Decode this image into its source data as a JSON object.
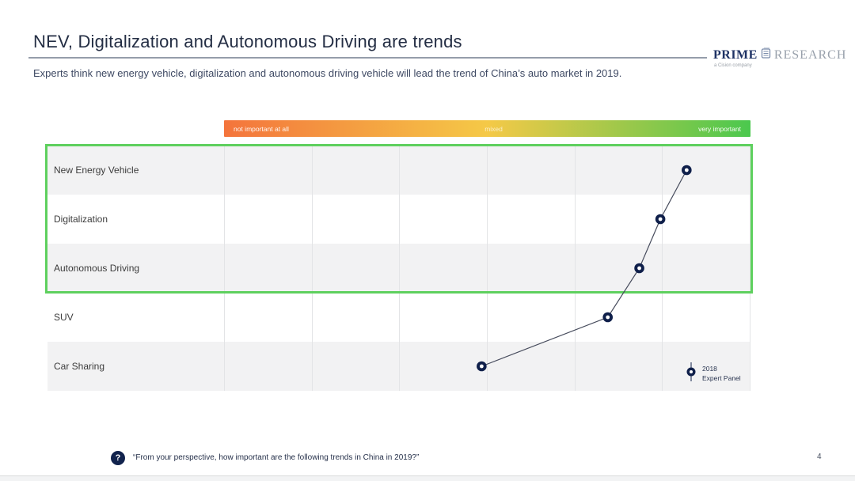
{
  "header": {
    "title": "NEV, Digitalization and Autonomous Driving are trends",
    "subtitle": "Experts think new energy vehicle, digitalization and autonomous driving vehicle will lead the trend of China’s auto market in 2019.",
    "logo": {
      "prime": "PRIME",
      "research": "RESEARCH",
      "tagline": "a Cision company"
    }
  },
  "scale_bar": {
    "left_label": "not important at all",
    "center_label": "mixed",
    "right_label": "very important",
    "gradient": [
      "#f4743c",
      "#f5c947",
      "#4bc84e"
    ]
  },
  "chart_data": {
    "type": "scatter",
    "title": "",
    "xlabel": "",
    "ylabel": "",
    "categories": [
      "New Energy Vehicle",
      "Digitalization",
      "Autonomous Driving",
      "SUV",
      "Car Sharing"
    ],
    "series": [
      {
        "name": "2018 Expert Panel",
        "values": [
          88,
          83,
          79,
          73,
          49
        ]
      }
    ],
    "xlim": [
      0,
      100
    ],
    "x_scale_meaning": "importance from 'not important at all' (0) through 'mixed' (50) to 'very important' (100)",
    "highlighted_categories": [
      "New Energy Vehicle",
      "Digitalization",
      "Autonomous Driving"
    ],
    "grid": "vertical-only",
    "legend_position": "bottom-right",
    "marker_color": "#0f1f4a",
    "line_color": "#464b5c",
    "stripe_color": "#f2f2f3",
    "highlight_border_color": "#5ed05e"
  },
  "legend": {
    "line1": "2018",
    "line2": "Expert Panel"
  },
  "footer": {
    "question_icon": "?",
    "question": "“From your perspective, how important are the following trends in China in 2019?”",
    "page_number": "4"
  }
}
